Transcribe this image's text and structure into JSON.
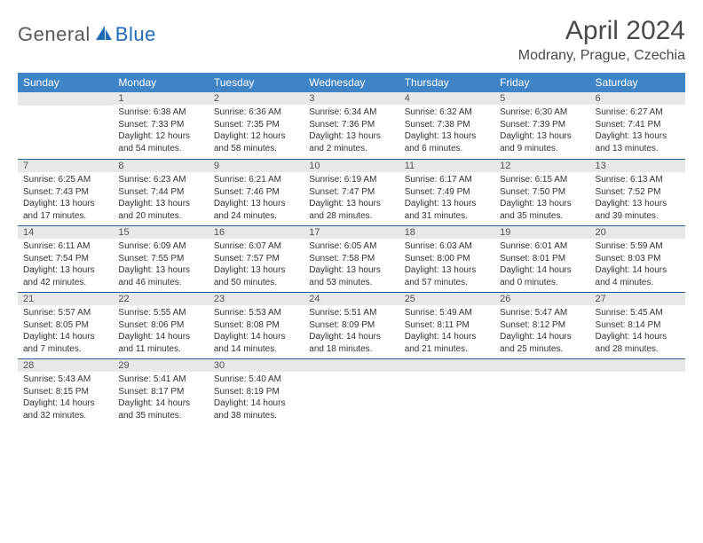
{
  "logo": {
    "brand_a": "General",
    "brand_b": "Blue"
  },
  "title": "April 2024",
  "location": "Modrany, Prague, Czechia",
  "colors": {
    "header_bg": "#3e84c6",
    "header_text": "#ffffff",
    "daynum_bg": "#e8e8e8",
    "row_border": "#2a5a8a",
    "text": "#333333",
    "logo_gray": "#5a5a5a",
    "logo_blue": "#1e6bb8"
  },
  "weekdays": [
    "Sunday",
    "Monday",
    "Tuesday",
    "Wednesday",
    "Thursday",
    "Friday",
    "Saturday"
  ],
  "weeks": [
    [
      {
        "day": "",
        "sunrise": "",
        "sunset": "",
        "daylight": ""
      },
      {
        "day": "1",
        "sunrise": "Sunrise: 6:38 AM",
        "sunset": "Sunset: 7:33 PM",
        "daylight": "Daylight: 12 hours and 54 minutes."
      },
      {
        "day": "2",
        "sunrise": "Sunrise: 6:36 AM",
        "sunset": "Sunset: 7:35 PM",
        "daylight": "Daylight: 12 hours and 58 minutes."
      },
      {
        "day": "3",
        "sunrise": "Sunrise: 6:34 AM",
        "sunset": "Sunset: 7:36 PM",
        "daylight": "Daylight: 13 hours and 2 minutes."
      },
      {
        "day": "4",
        "sunrise": "Sunrise: 6:32 AM",
        "sunset": "Sunset: 7:38 PM",
        "daylight": "Daylight: 13 hours and 6 minutes."
      },
      {
        "day": "5",
        "sunrise": "Sunrise: 6:30 AM",
        "sunset": "Sunset: 7:39 PM",
        "daylight": "Daylight: 13 hours and 9 minutes."
      },
      {
        "day": "6",
        "sunrise": "Sunrise: 6:27 AM",
        "sunset": "Sunset: 7:41 PM",
        "daylight": "Daylight: 13 hours and 13 minutes."
      }
    ],
    [
      {
        "day": "7",
        "sunrise": "Sunrise: 6:25 AM",
        "sunset": "Sunset: 7:43 PM",
        "daylight": "Daylight: 13 hours and 17 minutes."
      },
      {
        "day": "8",
        "sunrise": "Sunrise: 6:23 AM",
        "sunset": "Sunset: 7:44 PM",
        "daylight": "Daylight: 13 hours and 20 minutes."
      },
      {
        "day": "9",
        "sunrise": "Sunrise: 6:21 AM",
        "sunset": "Sunset: 7:46 PM",
        "daylight": "Daylight: 13 hours and 24 minutes."
      },
      {
        "day": "10",
        "sunrise": "Sunrise: 6:19 AM",
        "sunset": "Sunset: 7:47 PM",
        "daylight": "Daylight: 13 hours and 28 minutes."
      },
      {
        "day": "11",
        "sunrise": "Sunrise: 6:17 AM",
        "sunset": "Sunset: 7:49 PM",
        "daylight": "Daylight: 13 hours and 31 minutes."
      },
      {
        "day": "12",
        "sunrise": "Sunrise: 6:15 AM",
        "sunset": "Sunset: 7:50 PM",
        "daylight": "Daylight: 13 hours and 35 minutes."
      },
      {
        "day": "13",
        "sunrise": "Sunrise: 6:13 AM",
        "sunset": "Sunset: 7:52 PM",
        "daylight": "Daylight: 13 hours and 39 minutes."
      }
    ],
    [
      {
        "day": "14",
        "sunrise": "Sunrise: 6:11 AM",
        "sunset": "Sunset: 7:54 PM",
        "daylight": "Daylight: 13 hours and 42 minutes."
      },
      {
        "day": "15",
        "sunrise": "Sunrise: 6:09 AM",
        "sunset": "Sunset: 7:55 PM",
        "daylight": "Daylight: 13 hours and 46 minutes."
      },
      {
        "day": "16",
        "sunrise": "Sunrise: 6:07 AM",
        "sunset": "Sunset: 7:57 PM",
        "daylight": "Daylight: 13 hours and 50 minutes."
      },
      {
        "day": "17",
        "sunrise": "Sunrise: 6:05 AM",
        "sunset": "Sunset: 7:58 PM",
        "daylight": "Daylight: 13 hours and 53 minutes."
      },
      {
        "day": "18",
        "sunrise": "Sunrise: 6:03 AM",
        "sunset": "Sunset: 8:00 PM",
        "daylight": "Daylight: 13 hours and 57 minutes."
      },
      {
        "day": "19",
        "sunrise": "Sunrise: 6:01 AM",
        "sunset": "Sunset: 8:01 PM",
        "daylight": "Daylight: 14 hours and 0 minutes."
      },
      {
        "day": "20",
        "sunrise": "Sunrise: 5:59 AM",
        "sunset": "Sunset: 8:03 PM",
        "daylight": "Daylight: 14 hours and 4 minutes."
      }
    ],
    [
      {
        "day": "21",
        "sunrise": "Sunrise: 5:57 AM",
        "sunset": "Sunset: 8:05 PM",
        "daylight": "Daylight: 14 hours and 7 minutes."
      },
      {
        "day": "22",
        "sunrise": "Sunrise: 5:55 AM",
        "sunset": "Sunset: 8:06 PM",
        "daylight": "Daylight: 14 hours and 11 minutes."
      },
      {
        "day": "23",
        "sunrise": "Sunrise: 5:53 AM",
        "sunset": "Sunset: 8:08 PM",
        "daylight": "Daylight: 14 hours and 14 minutes."
      },
      {
        "day": "24",
        "sunrise": "Sunrise: 5:51 AM",
        "sunset": "Sunset: 8:09 PM",
        "daylight": "Daylight: 14 hours and 18 minutes."
      },
      {
        "day": "25",
        "sunrise": "Sunrise: 5:49 AM",
        "sunset": "Sunset: 8:11 PM",
        "daylight": "Daylight: 14 hours and 21 minutes."
      },
      {
        "day": "26",
        "sunrise": "Sunrise: 5:47 AM",
        "sunset": "Sunset: 8:12 PM",
        "daylight": "Daylight: 14 hours and 25 minutes."
      },
      {
        "day": "27",
        "sunrise": "Sunrise: 5:45 AM",
        "sunset": "Sunset: 8:14 PM",
        "daylight": "Daylight: 14 hours and 28 minutes."
      }
    ],
    [
      {
        "day": "28",
        "sunrise": "Sunrise: 5:43 AM",
        "sunset": "Sunset: 8:15 PM",
        "daylight": "Daylight: 14 hours and 32 minutes."
      },
      {
        "day": "29",
        "sunrise": "Sunrise: 5:41 AM",
        "sunset": "Sunset: 8:17 PM",
        "daylight": "Daylight: 14 hours and 35 minutes."
      },
      {
        "day": "30",
        "sunrise": "Sunrise: 5:40 AM",
        "sunset": "Sunset: 8:19 PM",
        "daylight": "Daylight: 14 hours and 38 minutes."
      },
      {
        "day": "",
        "sunrise": "",
        "sunset": "",
        "daylight": ""
      },
      {
        "day": "",
        "sunrise": "",
        "sunset": "",
        "daylight": ""
      },
      {
        "day": "",
        "sunrise": "",
        "sunset": "",
        "daylight": ""
      },
      {
        "day": "",
        "sunrise": "",
        "sunset": "",
        "daylight": ""
      }
    ]
  ]
}
